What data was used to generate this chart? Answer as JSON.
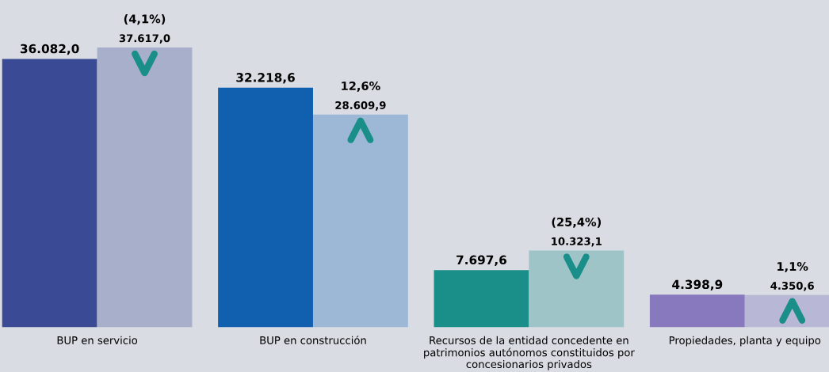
{
  "chart_data": {
    "type": "bar",
    "categories": [
      "BUP en servicio",
      "BUP en construcción",
      "Recursos de la entidad concedente en\npatrimonios autónomos constituidos por\nconcesionarios privados",
      "Propiedades, planta y equipo"
    ],
    "series": [
      {
        "colors": [
          "#3a4a94",
          "#1160b0",
          "#1a8e88",
          "#8878be"
        ],
        "values": [
          36082.0,
          32218.6,
          7697.6,
          4398.9
        ],
        "value_labels": [
          "36.082,0",
          "32.218,6",
          "7.697,6",
          "4.398,9"
        ]
      },
      {
        "colors": [
          "#a8afcb",
          "#9cb8d6",
          "#9fc4c8",
          "#b9b7d6"
        ],
        "values": [
          37617.0,
          28609.9,
          10323.1,
          4350.6
        ],
        "value_labels": [
          "37.617,0",
          "28.609,9",
          "10.323,1",
          "4.350,6"
        ]
      }
    ],
    "annotations": [
      "(4,1%)",
      "12,6%",
      "(25,4%)",
      "1,1%"
    ],
    "ylim": [
      0,
      44000
    ],
    "tick_labels": "x",
    "grid": false
  }
}
